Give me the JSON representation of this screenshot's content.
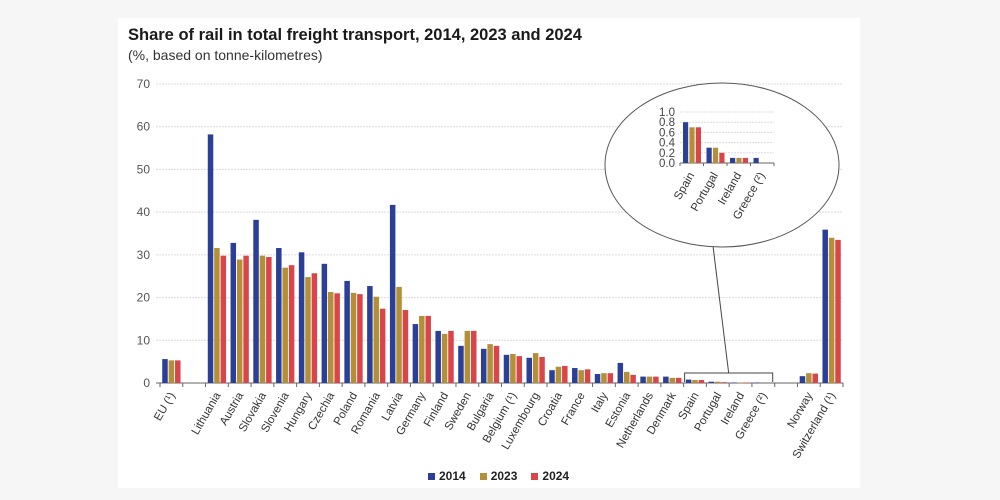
{
  "chart_data": {
    "type": "bar",
    "title": "Share of rail in total freight transport, 2014, 2023 and 2024",
    "subtitle": "(%, based on tonne-kilometres)",
    "xlabel": "",
    "ylabel": "",
    "ylim": [
      0,
      70
    ],
    "yticks": [
      0,
      10,
      20,
      30,
      40,
      50,
      60,
      70
    ],
    "grid": true,
    "legend_position": "bottom",
    "categories": [
      "EU (¹)",
      "",
      "Lithuania",
      "Austria",
      "Slovakia",
      "Slovenia",
      "Hungary",
      "Czechia",
      "Poland",
      "Romania",
      "Latvia",
      "Germany",
      "Finland",
      "Sweden",
      "Bulgaria",
      "Belgium (¹)",
      "Luxembourg",
      "Croatia",
      "France",
      "Italy",
      "Estonia",
      "Netherlands",
      "Denmark",
      "Spain",
      "Portugal",
      "Ireland",
      "Greece (²)",
      "",
      "Norway",
      "Switzerland (¹)"
    ],
    "series": [
      {
        "name": "2014",
        "color": "#2b3f96",
        "values": [
          5.6,
          null,
          58.2,
          32.8,
          38.2,
          31.6,
          30.6,
          27.9,
          23.9,
          22.7,
          41.7,
          13.8,
          12.2,
          8.7,
          8.0,
          6.6,
          5.9,
          3.0,
          3.5,
          2.1,
          4.7,
          1.5,
          1.5,
          0.8,
          0.3,
          0.1,
          0.1,
          null,
          1.6,
          35.9
        ]
      },
      {
        "name": "2023",
        "color": "#b39038",
        "values": [
          5.3,
          null,
          31.6,
          28.9,
          29.8,
          27.0,
          24.8,
          21.3,
          21.1,
          20.2,
          22.5,
          15.7,
          11.5,
          12.2,
          9.1,
          6.8,
          7.0,
          3.8,
          3.0,
          2.3,
          2.6,
          1.5,
          1.2,
          0.7,
          0.3,
          0.1,
          null,
          null,
          2.3,
          34.0
        ]
      },
      {
        "name": "2024",
        "color": "#d9464a",
        "values": [
          5.3,
          null,
          29.8,
          29.8,
          29.5,
          27.6,
          25.7,
          21.0,
          20.8,
          17.4,
          17.1,
          15.7,
          12.2,
          12.2,
          8.7,
          6.3,
          6.1,
          4.0,
          3.2,
          2.3,
          1.9,
          1.5,
          1.2,
          0.7,
          0.2,
          0.1,
          null,
          null,
          2.2,
          33.5
        ]
      }
    ],
    "inset": {
      "categories": [
        "Spain",
        "Portugal",
        "Ireland",
        "Greece (²)"
      ],
      "ylim": [
        0,
        1.0
      ],
      "yticks": [
        "0.0",
        "0.2",
        "0.4",
        "0.6",
        "0.8",
        "1.0"
      ],
      "series": [
        {
          "name": "2014",
          "values": [
            0.8,
            0.3,
            0.1,
            0.1
          ]
        },
        {
          "name": "2023",
          "values": [
            0.7,
            0.3,
            0.1,
            null
          ]
        },
        {
          "name": "2024",
          "values": [
            0.7,
            0.2,
            0.1,
            null
          ]
        }
      ]
    }
  }
}
